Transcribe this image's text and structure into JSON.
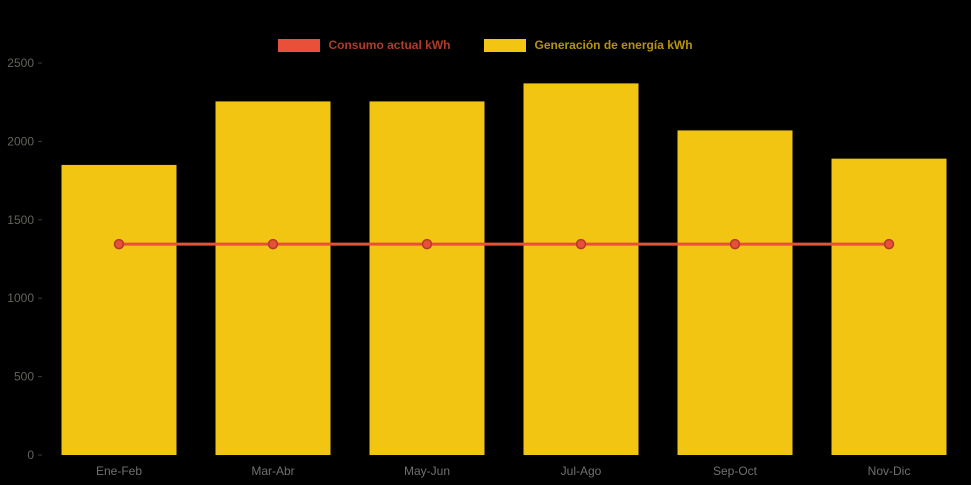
{
  "chart_data": {
    "type": "bar+line",
    "title": "",
    "categories": [
      "Ene-Feb",
      "Mar-Abr",
      "May-Jun",
      "Jul-Ago",
      "Sep-Oct",
      "Nov-Dic"
    ],
    "series": [
      {
        "name": "Consumo actual kWh",
        "type": "line",
        "color": "#E8503A",
        "values": [
          1345,
          1345,
          1345,
          1345,
          1345,
          1345
        ]
      },
      {
        "name": "Generación de energía kWh",
        "type": "bar",
        "color": "#F2C512",
        "values": [
          1850,
          2255,
          2255,
          2370,
          2070,
          1890
        ]
      }
    ],
    "xlabel": "",
    "ylabel": "",
    "ylim": [
      0,
      2500
    ],
    "y_ticks": [
      0,
      500,
      1000,
      1500,
      2000,
      2500
    ],
    "grid": false,
    "legend_position": "top-center",
    "background": "#000000",
    "axis_text_color": "#6b6b6b"
  }
}
